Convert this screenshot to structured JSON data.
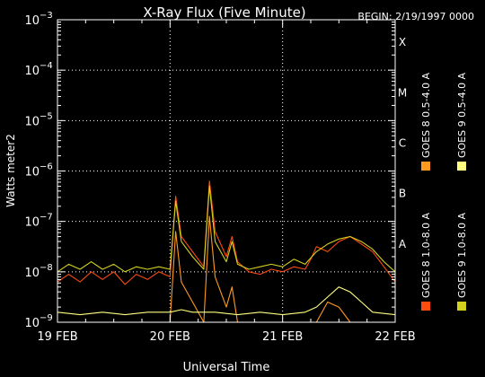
{
  "chart_data": {
    "type": "line",
    "title": "X-Ray Flux (Five Minute)",
    "begin_label": "BEGIN: 2/19/1997 0000",
    "xlabel": "Universal Time",
    "ylabel": "Watts meter2",
    "y_scale": "log",
    "ylim_exp": [
      -9,
      -3
    ],
    "y_ticks": [
      {
        "exp": -9,
        "label": "10"
      },
      {
        "exp": -8,
        "label": "10"
      },
      {
        "exp": -7,
        "label": "10"
      },
      {
        "exp": -6,
        "label": "10"
      },
      {
        "exp": -5,
        "label": "10"
      },
      {
        "exp": -4,
        "label": "10"
      },
      {
        "exp": -3,
        "label": "10"
      }
    ],
    "y_tick_exponents": [
      "−9",
      "−8",
      "−7",
      "−6",
      "−5",
      "−4",
      "−3"
    ],
    "x_ticks": [
      {
        "day": 0,
        "label": "19 FEB"
      },
      {
        "day": 1,
        "label": "20 FEB"
      },
      {
        "day": 2,
        "label": "21 FEB"
      },
      {
        "day": 3,
        "label": "22 FEB"
      }
    ],
    "xlim_days": [
      0,
      3
    ],
    "grid": "dotted",
    "flare_classes": [
      {
        "label": "X",
        "exp": -4
      },
      {
        "label": "M",
        "exp": -5
      },
      {
        "label": "C",
        "exp": -6
      },
      {
        "label": "B",
        "exp": -7
      },
      {
        "label": "A",
        "exp": -8
      }
    ],
    "legend": [
      {
        "name": "GOES 8 1.0-8.0 A",
        "color": "#ff4a10"
      },
      {
        "name": "GOES 8 0.5-4.0 A",
        "color": "#ff9a20"
      },
      {
        "name": "GOES 9 1.0-8.0 A",
        "color": "#d2d21e"
      },
      {
        "name": "GOES 9 0.5-4.0 A",
        "color": "#ffff80"
      }
    ],
    "series": [
      {
        "name": "GOES 8 1.0-8.0 A",
        "color": "#ff4a10",
        "x_days": [
          0.0,
          0.1,
          0.2,
          0.3,
          0.4,
          0.5,
          0.6,
          0.7,
          0.8,
          0.9,
          1.0,
          1.05,
          1.1,
          1.2,
          1.3,
          1.35,
          1.4,
          1.5,
          1.55,
          1.6,
          1.7,
          1.8,
          1.9,
          2.0,
          2.1,
          2.2,
          2.25,
          2.3,
          2.4,
          2.5,
          2.6,
          2.7,
          2.8,
          2.9,
          3.0
        ],
        "log10_flux": [
          -8.2,
          -8.05,
          -8.2,
          -8.0,
          -8.15,
          -8.0,
          -8.25,
          -8.05,
          -8.15,
          -8.0,
          -8.1,
          -6.5,
          -7.3,
          -7.6,
          -7.9,
          -6.2,
          -7.2,
          -7.7,
          -7.3,
          -7.8,
          -8.0,
          -8.05,
          -7.95,
          -8.0,
          -7.9,
          -7.95,
          -7.75,
          -7.5,
          -7.6,
          -7.4,
          -7.3,
          -7.45,
          -7.6,
          -7.9,
          -8.2
        ]
      },
      {
        "name": "GOES 8 0.5-4.0 A",
        "color": "#ff9a20",
        "x_days": [
          1.0,
          1.05,
          1.1,
          1.2,
          1.3,
          1.35,
          1.4,
          1.5,
          1.55,
          1.6,
          1.7,
          2.3,
          2.4,
          2.5,
          2.6,
          2.7
        ],
        "log10_flux": [
          -9.0,
          -7.2,
          -8.2,
          -8.6,
          -9.0,
          -6.9,
          -8.1,
          -8.7,
          -8.3,
          -9.0,
          -9.0,
          -9.0,
          -8.6,
          -8.7,
          -9.0,
          -9.0
        ]
      },
      {
        "name": "GOES 9 1.0-8.0 A",
        "color": "#d2d21e",
        "x_days": [
          0.0,
          0.1,
          0.2,
          0.3,
          0.4,
          0.5,
          0.6,
          0.7,
          0.8,
          0.9,
          1.0,
          1.05,
          1.1,
          1.2,
          1.3,
          1.35,
          1.4,
          1.5,
          1.55,
          1.6,
          1.7,
          1.8,
          1.9,
          2.0,
          2.1,
          2.2,
          2.3,
          2.4,
          2.5,
          2.6,
          2.7,
          2.8,
          2.9,
          3.0
        ],
        "log10_flux": [
          -8.0,
          -7.85,
          -7.95,
          -7.8,
          -7.95,
          -7.85,
          -8.0,
          -7.9,
          -7.95,
          -7.9,
          -7.95,
          -6.6,
          -7.4,
          -7.7,
          -7.95,
          -6.3,
          -7.4,
          -7.8,
          -7.4,
          -7.85,
          -7.95,
          -7.9,
          -7.85,
          -7.9,
          -7.75,
          -7.85,
          -7.6,
          -7.45,
          -7.35,
          -7.3,
          -7.4,
          -7.55,
          -7.8,
          -8.0
        ]
      },
      {
        "name": "GOES 9 0.5-4.0 A",
        "color": "#ffff80",
        "x_days": [
          0.0,
          0.2,
          0.4,
          0.6,
          0.8,
          1.0,
          1.1,
          1.2,
          1.4,
          1.6,
          1.8,
          2.0,
          2.2,
          2.3,
          2.4,
          2.5,
          2.6,
          2.7,
          2.8,
          3.0
        ],
        "log10_flux": [
          -8.8,
          -8.85,
          -8.8,
          -8.85,
          -8.8,
          -8.8,
          -8.75,
          -8.8,
          -8.8,
          -8.85,
          -8.8,
          -8.85,
          -8.8,
          -8.7,
          -8.5,
          -8.3,
          -8.4,
          -8.6,
          -8.8,
          -8.85
        ]
      }
    ]
  }
}
